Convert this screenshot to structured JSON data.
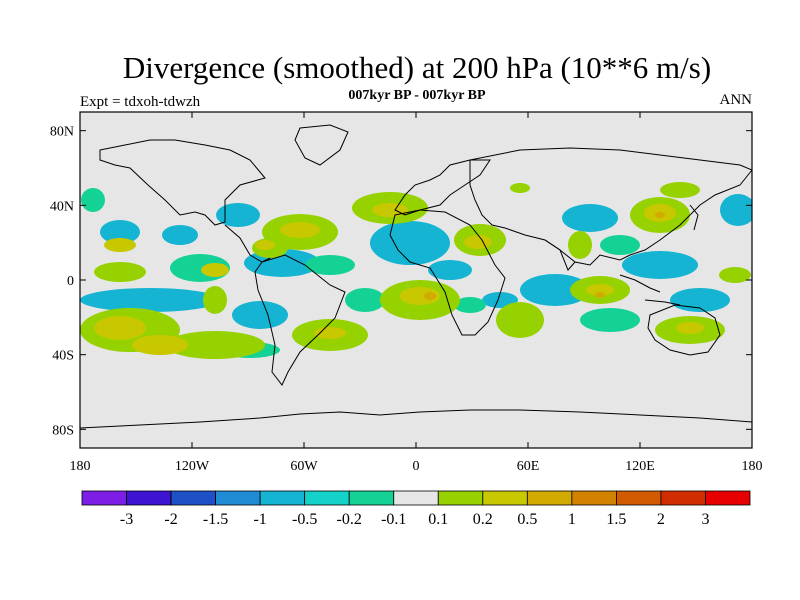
{
  "header": {
    "title": "Divergence (smoothed) at 200 hPa (10**6 m/s)",
    "subtitle": "007kyr BP - 007kyr BP",
    "left_label": "Expt = tdxoh-tdwzh",
    "right_label": "ANN"
  },
  "map": {
    "background_color": "#e6e6e6",
    "lat_ticks": [
      "80N",
      "40N",
      "0",
      "40S",
      "80S"
    ],
    "lat_values": [
      80,
      40,
      0,
      -40,
      -80
    ],
    "lon_ticks": [
      "180",
      "120W",
      "60W",
      "0",
      "60E",
      "120E",
      "180"
    ],
    "lon_values": [
      -180,
      -120,
      -60,
      0,
      60,
      120,
      180
    ],
    "lat_range": [
      -90,
      90
    ],
    "lon_range": [
      -180,
      180
    ]
  },
  "colorbar": {
    "colors": [
      "#7d1ee6",
      "#3c14d2",
      "#1e50c8",
      "#1e8cd2",
      "#14b4d2",
      "#14d2c8",
      "#14d296",
      "#e6e6e6",
      "#96d200",
      "#c8c800",
      "#d2aa00",
      "#d28200",
      "#d25a00",
      "#d22d00",
      "#e60000"
    ],
    "labels": [
      "-3",
      "-2",
      "-1.5",
      "-1",
      "-0.5",
      "-0.2",
      "-0.1",
      "0.1",
      "0.2",
      "0.5",
      "1",
      "1.5",
      "2",
      "3"
    ]
  }
}
